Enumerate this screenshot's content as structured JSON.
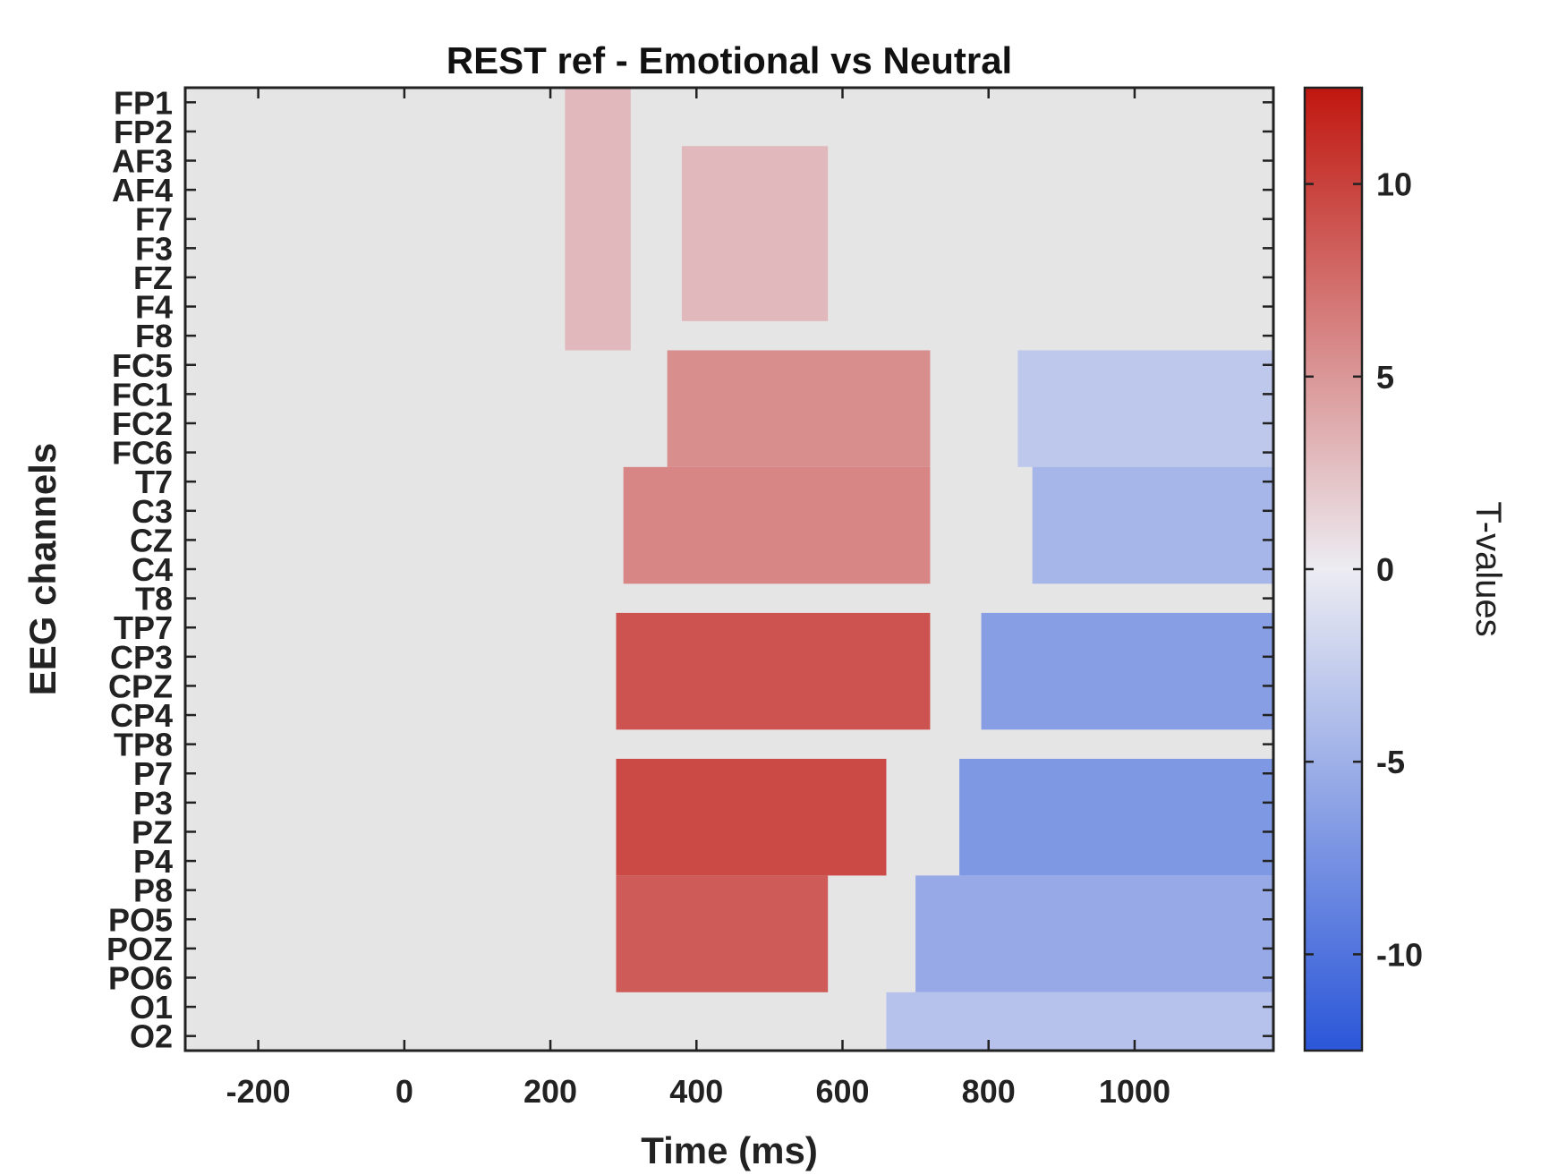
{
  "chart_data": {
    "type": "heatmap",
    "title": "REST ref - Emotional vs Neutral",
    "xlabel": "Time (ms)",
    "ylabel": "EEG channels",
    "colorbar_label": "T-values",
    "xlim": [
      -300,
      1190
    ],
    "x_ticks": [
      -200,
      0,
      200,
      400,
      600,
      800,
      1000
    ],
    "clim": [
      -12.5,
      12.5
    ],
    "colorbar_ticks": [
      10,
      5,
      0,
      -5,
      -10
    ],
    "colormap": {
      "negative_end": "#2a56d8",
      "neutral": "#ececf2",
      "positive_end": "#c0170f",
      "background": "#e5e5e5"
    },
    "channels": [
      "FP1",
      "FP2",
      "AF3",
      "AF4",
      "F7",
      "F3",
      "FZ",
      "F4",
      "F8",
      "FC5",
      "FC1",
      "FC2",
      "FC6",
      "T7",
      "C3",
      "CZ",
      "C4",
      "T8",
      "TP7",
      "CP3",
      "CPZ",
      "CP4",
      "TP8",
      "P7",
      "P3",
      "PZ",
      "P4",
      "P8",
      "PO5",
      "POZ",
      "PO6",
      "O1",
      "O2"
    ],
    "significant_clusters": [
      {
        "channel_from": "FP1",
        "channel_to": "F8",
        "time_from": 220,
        "time_to": 310,
        "t_value": 3
      },
      {
        "channel_from": "AF3",
        "channel_to": "F4",
        "time_from": 380,
        "time_to": 580,
        "t_value": 3
      },
      {
        "channel_from": "FC5",
        "channel_to": "FC6",
        "time_from": 360,
        "time_to": 720,
        "t_value": 5.5
      },
      {
        "channel_from": "T7",
        "channel_to": "C4",
        "time_from": 300,
        "time_to": 720,
        "t_value": 6
      },
      {
        "channel_from": "TP7",
        "channel_to": "CP4",
        "time_from": 290,
        "time_to": 720,
        "t_value": 9
      },
      {
        "channel_from": "P7",
        "channel_to": "P4",
        "time_from": 290,
        "time_to": 660,
        "t_value": 9.5
      },
      {
        "channel_from": "P8",
        "channel_to": "PO6",
        "time_from": 290,
        "time_to": 580,
        "t_value": 8.5
      },
      {
        "channel_from": "FC5",
        "channel_to": "FC6",
        "time_from": 840,
        "time_to": 1190,
        "t_value": -3
      },
      {
        "channel_from": "T7",
        "channel_to": "C4",
        "time_from": 860,
        "time_to": 1190,
        "t_value": -4.5
      },
      {
        "channel_from": "TP7",
        "channel_to": "CP4",
        "time_from": 790,
        "time_to": 1190,
        "t_value": -6.5
      },
      {
        "channel_from": "P7",
        "channel_to": "P4",
        "time_from": 760,
        "time_to": 1190,
        "t_value": -7
      },
      {
        "channel_from": "P8",
        "channel_to": "PO6",
        "time_from": 700,
        "time_to": 1190,
        "t_value": -5.5
      },
      {
        "channel_from": "O1",
        "channel_to": "O2",
        "time_from": 660,
        "time_to": 1190,
        "t_value": -3.5
      }
    ]
  }
}
